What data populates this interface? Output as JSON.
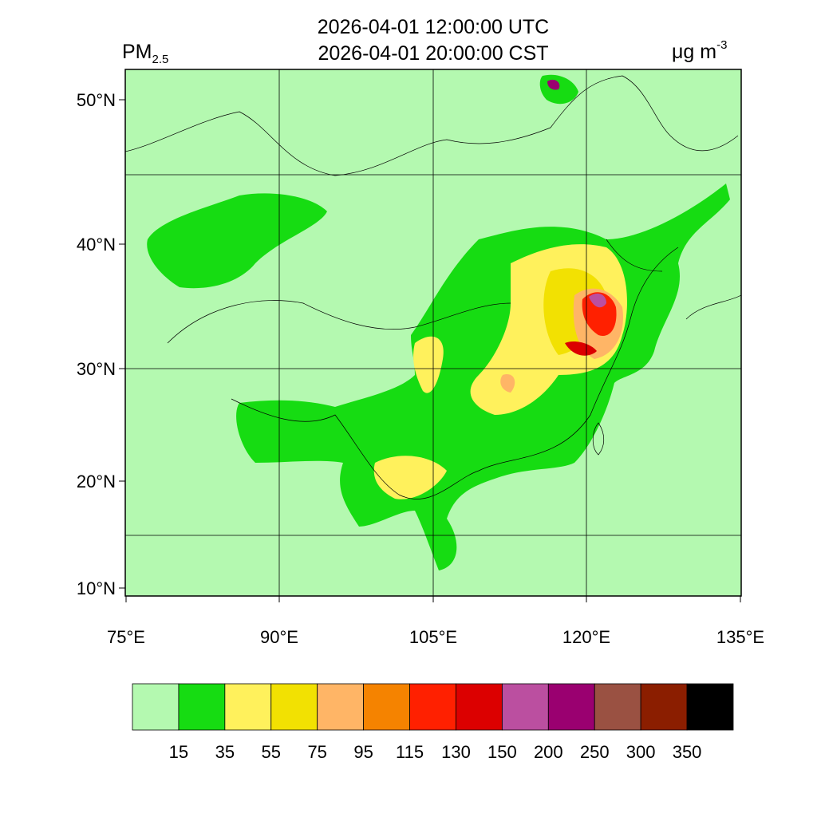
{
  "title": {
    "lines": [
      "2026-04-01 12:00:00 UTC",
      "2026-04-01 20:00:00 CST"
    ]
  },
  "variable": {
    "name": "PM",
    "subscript": "2.5"
  },
  "units": {
    "base": "μg m",
    "superscript": "-3"
  },
  "map": {
    "lat_ticks": [
      "50°N",
      "40°N",
      "30°N",
      "20°N",
      "10°N"
    ],
    "lon_ticks": [
      "75°E",
      "90°E",
      "105°E",
      "120°E",
      "135°E"
    ]
  },
  "colorbar": {
    "colors": [
      "#b4f9b0",
      "#16dc12",
      "#fff15c",
      "#f2e102",
      "#ffb566",
      "#f58300",
      "#ff2000",
      "#dc0000",
      "#bb4fa0",
      "#9a0070",
      "#9a5142",
      "#8b1e00",
      "#000000"
    ],
    "labels": [
      "15",
      "35",
      "55",
      "75",
      "95",
      "115",
      "130",
      "150",
      "200",
      "250",
      "300",
      "350"
    ]
  }
}
